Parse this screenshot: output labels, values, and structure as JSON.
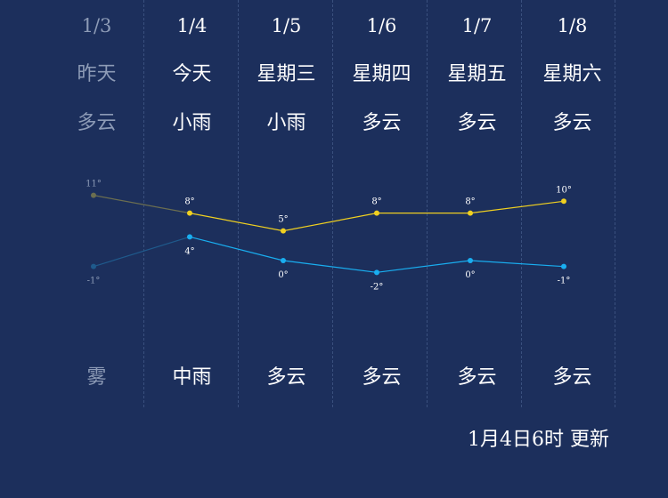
{
  "days": [
    {
      "date": "1/3",
      "weekday": "昨天",
      "weather_day": "多云",
      "weather_night": "雾",
      "past": true
    },
    {
      "date": "1/4",
      "weekday": "今天",
      "weather_day": "小雨",
      "weather_night": "中雨",
      "past": false
    },
    {
      "date": "1/5",
      "weekday": "星期三",
      "weather_day": "小雨",
      "weather_night": "多云",
      "past": false
    },
    {
      "date": "1/6",
      "weekday": "星期四",
      "weather_day": "多云",
      "weather_night": "多云",
      "past": false
    },
    {
      "date": "1/7",
      "weekday": "星期五",
      "weather_day": "多云",
      "weather_night": "多云",
      "past": false
    },
    {
      "date": "1/8",
      "weekday": "星期六",
      "weather_day": "多云",
      "weather_night": "多云",
      "past": false
    }
  ],
  "chart_data": {
    "type": "line",
    "x": [
      "1/3",
      "1/4",
      "1/5",
      "1/6",
      "1/7",
      "1/8"
    ],
    "series": [
      {
        "key": "high",
        "values": [
          11,
          8,
          5,
          8,
          8,
          10
        ],
        "labels": [
          "11°",
          "8°",
          "5°",
          "8°",
          "8°",
          "10°"
        ]
      },
      {
        "key": "low",
        "values": [
          -1,
          4,
          0,
          -2,
          0,
          -1
        ],
        "labels": [
          "-1°",
          "4°",
          "0°",
          "-2°",
          "0°",
          "-1°"
        ]
      }
    ]
  },
  "colors": {
    "background": "#1c2f5c",
    "text": "#ffffff",
    "past_text": "#8d9bb6",
    "high_line": "#f0d020",
    "high_past": "#6b6e50",
    "low_line": "#19aef0",
    "low_past": "#1f5a8c"
  },
  "update_text": "1月4日6时 更新"
}
